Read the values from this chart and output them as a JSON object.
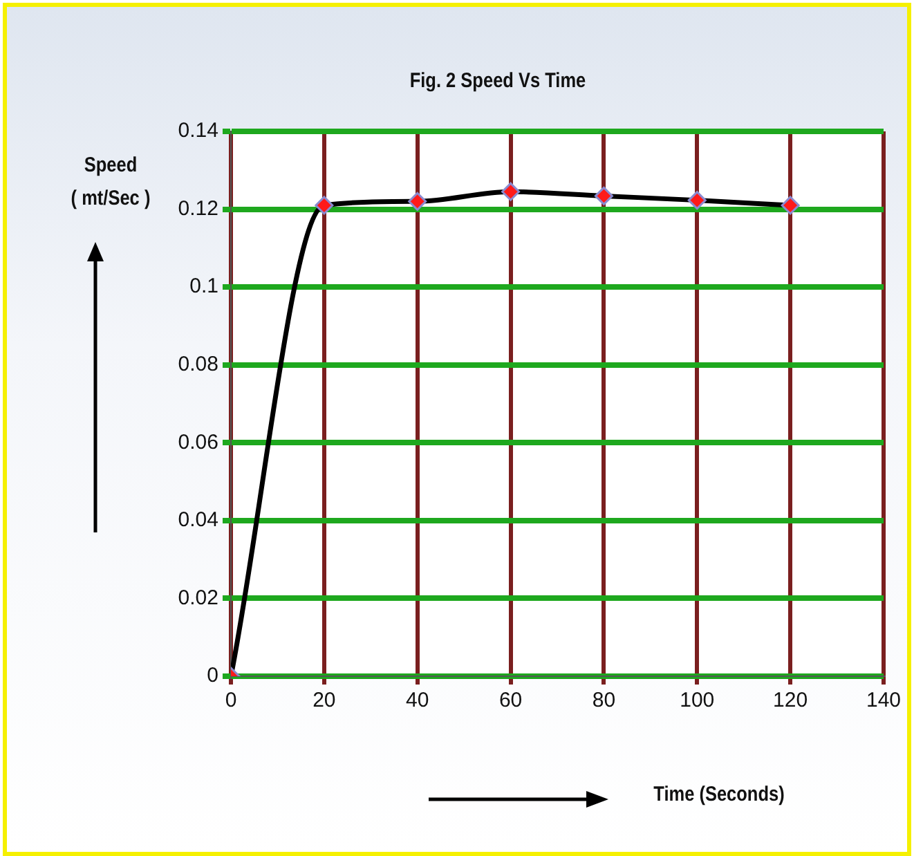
{
  "chart_data": {
    "type": "line",
    "title": "Fig. 2 Speed Vs Time",
    "xlabel": "Time (Seconds)",
    "ylabel": "Speed\n( mt/Sec )",
    "x": [
      0,
      20,
      40,
      60,
      80,
      100,
      120
    ],
    "series": [
      {
        "color": "#000000",
        "values": [
          0,
          0.121,
          0.122,
          0.1245,
          0.1234,
          0.1223,
          0.121
        ]
      }
    ],
    "xlim": [
      0,
      140
    ],
    "xticks": [
      0,
      20,
      40,
      60,
      80,
      100,
      120,
      140
    ],
    "ylim": [
      0,
      0.14
    ],
    "yticks": [
      0,
      0.02,
      0.04,
      0.06,
      0.08,
      0.1,
      0.12,
      0.14
    ],
    "grid": true,
    "marker": "diamond",
    "line_style": "solid"
  }
}
